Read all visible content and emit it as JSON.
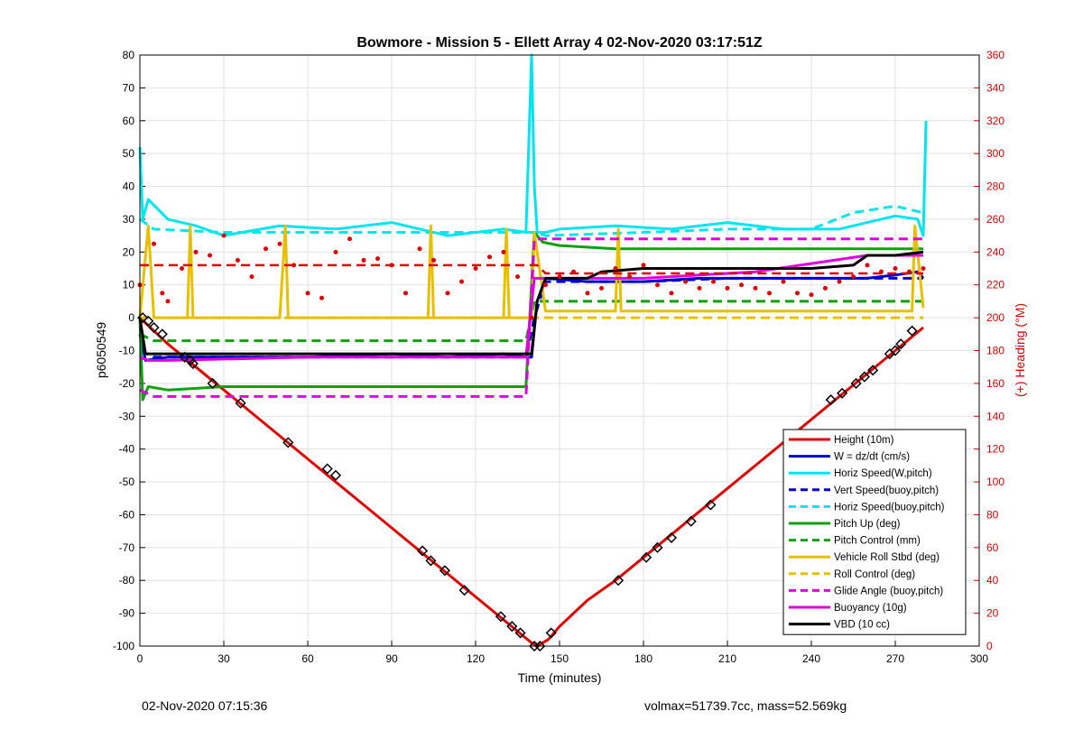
{
  "chart_data": {
    "type": "line",
    "title": "Bowmore - Mission 5 - Ellett Array 4 02-Nov-2020 03:17:51Z",
    "xlabel": "Time (minutes)",
    "ylabel": "p6050549",
    "ylabel_right": "(+) Heading (°M)",
    "xlim": [
      0,
      300
    ],
    "ylim": [
      -100,
      80
    ],
    "ylim_right": [
      0,
      360
    ],
    "xticks": [
      0,
      30,
      60,
      90,
      120,
      150,
      180,
      210,
      240,
      270,
      300
    ],
    "yticks": [
      -100,
      -90,
      -80,
      -70,
      -60,
      -50,
      -40,
      -30,
      -20,
      -10,
      0,
      10,
      20,
      30,
      40,
      50,
      60,
      70,
      80
    ],
    "yticks_right": [
      0,
      20,
      40,
      60,
      80,
      100,
      120,
      140,
      160,
      180,
      200,
      220,
      240,
      260,
      280,
      300,
      320,
      340,
      360
    ],
    "grid": true,
    "legend_position": "bottom-right",
    "colors": {
      "axis_right": "#d40000",
      "height": "#e00000",
      "w": "#0000cc",
      "horiz_speed": "#00e5ee",
      "pitch": "#10a010",
      "roll": "#e6c000",
      "glide": "#dd00dd",
      "buoyancy": "#dd00dd",
      "vbd": "#000000",
      "heading": "#dd0000"
    },
    "series": [
      {
        "name": "Height (10m)",
        "key": "height",
        "style": "solid",
        "x": [
          0,
          5,
          10,
          20,
          30,
          40,
          50,
          60,
          70,
          80,
          90,
          100,
          110,
          120,
          130,
          140,
          142,
          146,
          150,
          160,
          170,
          180,
          190,
          200,
          210,
          220,
          230,
          240,
          250,
          260,
          270,
          280
        ],
        "values": [
          0,
          -4,
          -8,
          -15,
          -22,
          -29,
          -36,
          -43,
          -50,
          -57,
          -64,
          -71,
          -78,
          -85,
          -92,
          -99,
          -100,
          -98,
          -94,
          -86,
          -80,
          -73,
          -66,
          -59,
          -52,
          -45,
          -38,
          -31,
          -24,
          -17,
          -10,
          -3
        ]
      },
      {
        "name": "W = dz/dt (cm/s)",
        "key": "w",
        "style": "solid",
        "x": [
          0,
          2,
          10,
          30,
          60,
          90,
          110,
          130,
          138,
          140,
          142,
          145,
          160,
          180,
          200,
          220,
          240,
          260,
          270,
          278,
          280
        ],
        "values": [
          -5,
          -13,
          -12,
          -12,
          -12,
          -11,
          -12,
          -11,
          -12,
          -12,
          5,
          12,
          11,
          11,
          12,
          12,
          12,
          12,
          13,
          14,
          12
        ]
      },
      {
        "name": "Horiz Speed(W,pitch)",
        "key": "horiz_speed",
        "style": "solid",
        "x": [
          0,
          1,
          3,
          10,
          20,
          30,
          50,
          70,
          90,
          110,
          120,
          130,
          138,
          140,
          141,
          142,
          145,
          150,
          170,
          190,
          210,
          230,
          250,
          260,
          270,
          278,
          280,
          281
        ],
        "values": [
          52,
          30,
          36,
          30,
          28,
          25,
          28,
          27,
          29,
          25,
          26,
          27,
          26,
          80,
          40,
          26,
          26,
          27,
          28,
          27,
          29,
          27,
          27,
          29,
          31,
          30,
          25,
          60
        ]
      },
      {
        "name": "Vert Speed(buoy,pitch)",
        "key": "w",
        "style": "dashed",
        "x": [
          0,
          5,
          30,
          60,
          90,
          120,
          138,
          141,
          145,
          180,
          210,
          240,
          270,
          280
        ],
        "values": [
          -10,
          -12,
          -12,
          -12,
          -12,
          -12,
          -12,
          0,
          11,
          11,
          12,
          12,
          12,
          12
        ]
      },
      {
        "name": "Horiz Speed(buoy,pitch)",
        "key": "horiz_speed",
        "style": "dashed",
        "x": [
          0,
          5,
          30,
          60,
          90,
          120,
          138,
          141,
          145,
          180,
          210,
          240,
          255,
          270,
          280
        ],
        "values": [
          30,
          27,
          26,
          26,
          26,
          26,
          26,
          26,
          25,
          26,
          27,
          27,
          32,
          34,
          32
        ]
      },
      {
        "name": "Pitch Up (deg)",
        "key": "pitch",
        "style": "solid",
        "x": [
          0,
          1,
          3,
          10,
          30,
          60,
          90,
          110,
          130,
          138,
          141,
          144,
          150,
          170,
          190,
          210,
          240,
          260,
          270,
          280
        ],
        "values": [
          0,
          -25,
          -21,
          -22,
          -21,
          -21,
          -21,
          -21,
          -21,
          -21,
          26,
          23,
          22,
          21,
          21,
          21,
          21,
          21,
          21,
          21
        ]
      },
      {
        "name": "Pitch Control (mm)",
        "key": "pitch",
        "style": "dashed",
        "x": [
          0,
          5,
          30,
          60,
          90,
          120,
          138,
          141,
          145,
          180,
          210,
          240,
          260,
          280
        ],
        "values": [
          -5,
          -7,
          -7,
          -7,
          -7,
          -7,
          -7,
          5,
          5,
          5,
          5,
          5,
          5,
          5
        ]
      },
      {
        "name": "Vehicle Roll Stbd (deg)",
        "key": "roll",
        "style": "solid",
        "x": [
          0,
          3,
          5,
          10,
          17,
          18,
          19,
          30,
          50,
          52,
          53,
          60,
          90,
          103,
          104,
          105,
          120,
          130,
          131,
          132,
          140,
          141,
          145,
          170,
          171,
          172,
          200,
          240,
          260,
          270,
          276,
          277,
          280
        ],
        "values": [
          0,
          28,
          0,
          0,
          0,
          28,
          0,
          0,
          0,
          28,
          0,
          0,
          0,
          0,
          28,
          0,
          0,
          0,
          27,
          0,
          0,
          26,
          2,
          2,
          27,
          2,
          2,
          2,
          2,
          2,
          2,
          28,
          3
        ]
      },
      {
        "name": "Roll Control (deg)",
        "key": "roll",
        "style": "dashed",
        "x": [
          0,
          5,
          30,
          60,
          90,
          120,
          140,
          145,
          180,
          210,
          240,
          280
        ],
        "values": [
          0,
          0,
          0,
          0,
          0,
          0,
          0,
          0,
          0,
          0,
          0,
          0
        ]
      },
      {
        "name": "Glide Angle (buoy,pitch)",
        "key": "glide",
        "style": "dashed",
        "x": [
          0,
          5,
          30,
          60,
          90,
          120,
          138,
          141,
          145,
          180,
          210,
          240,
          270,
          280
        ],
        "values": [
          -22,
          -24,
          -24,
          -24,
          -24,
          -24,
          -24,
          24,
          24,
          24,
          24,
          24,
          24,
          24
        ]
      },
      {
        "name": "Buoyancy (10g)",
        "key": "buoyancy",
        "style": "solid",
        "x": [
          0,
          3,
          10,
          60,
          90,
          120,
          138,
          141,
          145,
          180,
          220,
          260,
          280
        ],
        "values": [
          -12,
          -13,
          -13,
          -12,
          -12,
          -12,
          -12,
          12,
          12,
          12,
          14,
          19,
          19
        ]
      },
      {
        "name": "VBD (10 cc)",
        "key": "vbd",
        "style": "solid",
        "x": [
          0,
          2,
          10,
          60,
          90,
          120,
          138,
          140,
          142,
          145,
          150,
          160,
          165,
          180,
          200,
          240,
          255,
          260,
          270,
          280
        ],
        "values": [
          0,
          -11,
          -11,
          -11,
          -11,
          -11,
          -11,
          -11,
          5,
          12,
          12,
          12,
          14,
          15,
          15,
          15,
          16,
          19,
          19,
          20
        ]
      }
    ],
    "heading_series": {
      "axis": "right",
      "style": "dots",
      "x": [
        0,
        5,
        8,
        10,
        15,
        20,
        25,
        30,
        35,
        40,
        45,
        50,
        55,
        60,
        65,
        70,
        75,
        80,
        85,
        90,
        95,
        100,
        105,
        110,
        115,
        120,
        125,
        130,
        135,
        140,
        145,
        150,
        155,
        160,
        165,
        170,
        175,
        180,
        185,
        190,
        195,
        200,
        205,
        210,
        215,
        220,
        225,
        230,
        235,
        240,
        245,
        250,
        255,
        260,
        265,
        270,
        275,
        280
      ],
      "values": [
        220,
        245,
        215,
        210,
        230,
        240,
        238,
        250,
        235,
        225,
        242,
        245,
        232,
        215,
        212,
        240,
        248,
        235,
        236,
        232,
        215,
        242,
        235,
        215,
        222,
        230,
        237,
        240,
        225,
        200,
        220,
        225,
        228,
        215,
        218,
        230,
        225,
        232,
        220,
        215,
        222,
        218,
        222,
        218,
        220,
        218,
        215,
        222,
        215,
        214,
        218,
        222,
        225,
        232,
        228,
        230,
        228,
        230
      ]
    },
    "heading_target_line": {
      "axis": "right",
      "style": "dashed",
      "x": [
        0,
        142,
        145,
        280
      ],
      "values": [
        232,
        232,
        227,
        227
      ]
    },
    "markers": {
      "x": [
        1,
        3,
        5,
        8,
        16,
        18,
        19,
        26,
        36,
        53,
        67,
        70,
        101,
        104,
        109,
        116,
        129,
        133,
        136,
        141,
        143,
        147,
        171,
        181,
        185,
        190,
        197,
        204,
        247,
        251,
        256,
        259,
        262,
        268,
        270,
        272,
        276
      ],
      "values": [
        0,
        -1,
        -3,
        -5,
        -12,
        -13,
        -14,
        -20,
        -26,
        -38,
        -46,
        -48,
        -71,
        -74,
        -77,
        -83,
        -91,
        -94,
        -96,
        -100,
        -100,
        -96,
        -80,
        -73,
        -70,
        -67,
        -62,
        -57,
        -25,
        -23,
        -20,
        -18,
        -16,
        -11,
        -10,
        -8,
        -4
      ]
    }
  },
  "footer": {
    "left": "02-Nov-2020 07:15:36",
    "right": "volmax=51739.7cc, mass=52.569kg"
  }
}
